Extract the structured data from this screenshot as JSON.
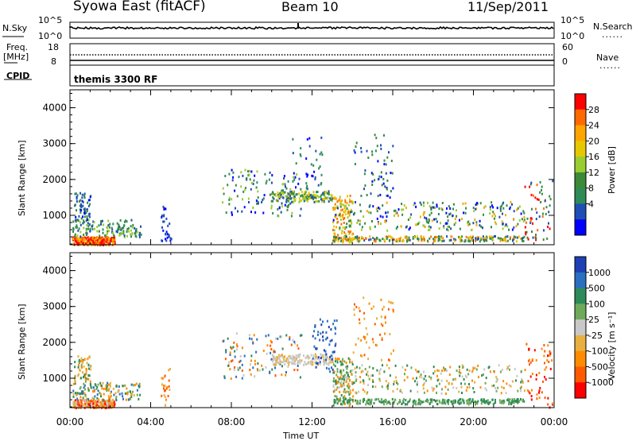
{
  "header": {
    "station": "Syowa East (fitACF)",
    "beam": "Beam 10",
    "date": "11/Sep/2011"
  },
  "top_panels": {
    "nsky_label": "N.Sky",
    "nsky_ticks": [
      "10^5",
      "10^0"
    ],
    "nsearch_label": "N.Search",
    "nsearch_ticks": [
      "10^5",
      "10^0"
    ],
    "freq_label": "Freq.",
    "freq_unit": "[MHz]",
    "freq_ticks": [
      "18",
      "8"
    ],
    "nave_label": "Nave",
    "nave_ticks": [
      "60",
      "0"
    ],
    "cpid_label": "CPID",
    "cpid_text": "themis 3300 RF",
    "legend_dots": "......"
  },
  "chart_data": [
    {
      "type": "heatmap",
      "name": "power",
      "ylabel": "Slant Range [km]",
      "ylim": [
        180,
        4500
      ],
      "yticks": [
        1000,
        2000,
        3000,
        4000
      ],
      "xlim": [
        0,
        24
      ],
      "colorbar_label": "Power [dB]",
      "colorbar_ticks": [
        "28",
        "24",
        "20",
        "16",
        "12",
        "8",
        "4"
      ],
      "colorbar_colors": [
        "#ff0000",
        "#ff6a00",
        "#ffa500",
        "#e6c800",
        "#9acd32",
        "#3a8a3a",
        "#2e8b57",
        "#1f4fb4",
        "#0000ff"
      ]
    },
    {
      "type": "heatmap",
      "name": "velocity",
      "ylabel": "Slant Range [km]",
      "ylim": [
        180,
        4500
      ],
      "yticks": [
        1000,
        2000,
        3000,
        4000
      ],
      "xlim": [
        0,
        24
      ],
      "xlabel": "Time UT",
      "xticks": [
        "00:00",
        "04:00",
        "08:00",
        "12:00",
        "16:00",
        "20:00",
        "00:00"
      ],
      "colorbar_label": "Velocity [m s⁻¹]",
      "colorbar_ticks": [
        "1000",
        "500",
        "100",
        "25",
        "-25",
        "-100",
        "-500",
        "-1000"
      ],
      "colorbar_colors": [
        "#1f3fb4",
        "#2a6fc0",
        "#2e8b57",
        "#6faa5a",
        "#c8c8c8",
        "#e8b040",
        "#ff8c00",
        "#ff5a00",
        "#ff0000"
      ]
    }
  ]
}
